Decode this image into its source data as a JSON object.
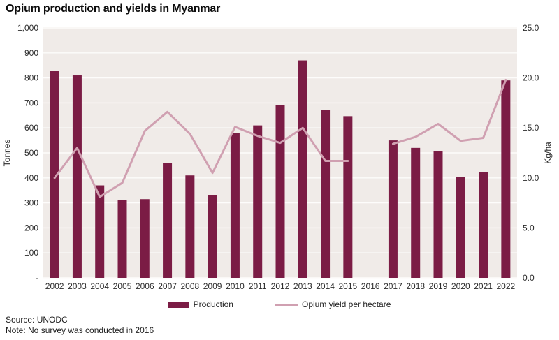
{
  "title": "Opium production and yields in Myanmar",
  "footer": {
    "source": "Source: UNODC",
    "note": "Note: No survey was conducted in 2016"
  },
  "legend": [
    {
      "label": "Production",
      "marker": "bar-swatch"
    },
    {
      "label": "Opium yield per hectare",
      "marker": "line-swatch"
    }
  ],
  "colors": {
    "bar": "#7b1c45",
    "line": "#d0a0b1",
    "plot_bg": "#f0ebe8",
    "grid": "#fdfcfb",
    "text": "#2b2b2b"
  },
  "chart_data": {
    "type": "bar",
    "subtype": "combo-bar-line",
    "title": "Opium production and yields in Myanmar",
    "categories": [
      "2002",
      "2003",
      "2004",
      "2005",
      "2006",
      "2007",
      "2008",
      "2009",
      "2010",
      "2011",
      "2012",
      "2013",
      "2014",
      "2015",
      "2016",
      "2017",
      "2018",
      "2019",
      "2020",
      "2021",
      "2022"
    ],
    "series": [
      {
        "name": "Production",
        "type": "bar",
        "axis": "left",
        "unit": "tonnes",
        "color": "#7b1c45",
        "values": [
          828,
          810,
          370,
          312,
          315,
          460,
          410,
          330,
          580,
          610,
          690,
          870,
          673,
          647,
          null,
          550,
          520,
          508,
          405,
          423,
          790
        ]
      },
      {
        "name": "Opium yield per hectare",
        "type": "line",
        "axis": "right",
        "unit": "kg/ha",
        "color": "#d0a0b1",
        "values": [
          10.0,
          13.0,
          8.1,
          9.5,
          14.7,
          16.6,
          14.4,
          10.5,
          15.1,
          14.2,
          13.5,
          15.0,
          11.7,
          11.7,
          null,
          13.4,
          14.1,
          15.4,
          13.7,
          14.0,
          19.8
        ]
      }
    ],
    "left_axis": {
      "title": "Tonnes",
      "min": 0,
      "max": 1000,
      "ticks": [
        {
          "value": 1000,
          "label": "1,000"
        },
        {
          "value": 900,
          "label": "900"
        },
        {
          "value": 800,
          "label": "800"
        },
        {
          "value": 700,
          "label": "700"
        },
        {
          "value": 600,
          "label": "600"
        },
        {
          "value": 500,
          "label": "500"
        },
        {
          "value": 400,
          "label": "400"
        },
        {
          "value": 300,
          "label": "300"
        },
        {
          "value": 200,
          "label": "200"
        },
        {
          "value": 100,
          "label": "100"
        },
        {
          "value": 0,
          "label": "-"
        }
      ]
    },
    "right_axis": {
      "title": "Kg/ha",
      "min": 0,
      "max": 25,
      "ticks": [
        {
          "value": 25,
          "label": "25.0"
        },
        {
          "value": 20,
          "label": "20.0"
        },
        {
          "value": 15,
          "label": "15.0"
        },
        {
          "value": 10,
          "label": "10.0"
        },
        {
          "value": 5,
          "label": "5.0"
        },
        {
          "value": 0,
          "label": "0.0"
        }
      ]
    },
    "grid": true,
    "legend_position": "bottom"
  }
}
